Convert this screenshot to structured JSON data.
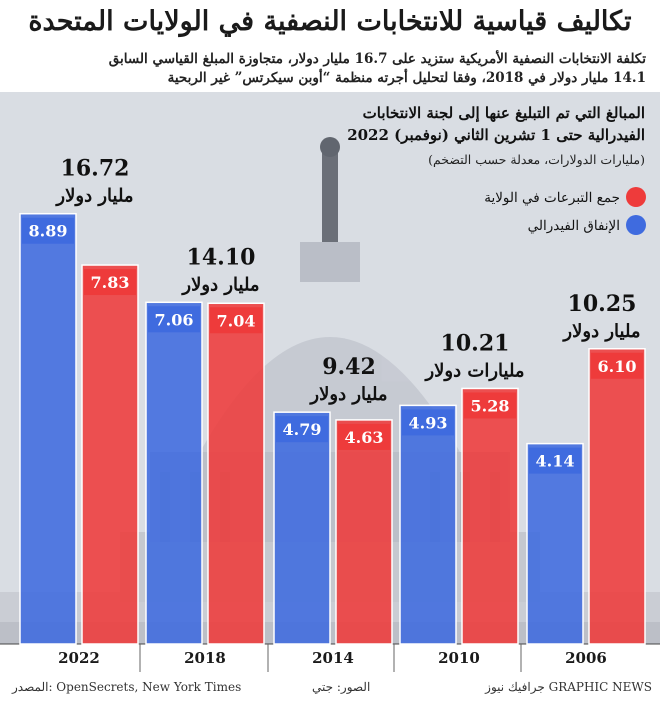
{
  "title": "تكاليف قياسية للانتخابات النصفية في الولايات المتحدة",
  "subtitle_lines": [
    "تكلفة الانتخابات النصفية الأمريكية ستزيد على 16.7 مليار دولار، متجاوزة المبلغ القياسي السابق",
    "14.1 مليار دولار في 2018، وفقا لتحليل أجرته منظمة “أوبن سيكرتس” غير الربحية"
  ],
  "footer": {
    "source": "المصدر: OpenSecrets, New York Times",
    "photos": "الصور: جتي",
    "credit": "GRAPHIC NEWS جرافيك نيوز"
  },
  "colors": {
    "red": "#ee3b3b",
    "blue": "#3f6bdf",
    "dark": "#111111"
  },
  "chart_data": {
    "type": "bar",
    "title": "المبالغ التي تم التبليغ عنها إلى لجنة الانتخابات الفيدرالية حتى 1 تشرين الثاني (نوفمبر) 2022",
    "title_lines": [
      "المبالغ التي تم التبليغ عنها إلى لجنة الانتخابات",
      "الفيدرالية حتى 1 تشرين الثاني (نوفمبر) 2022"
    ],
    "subtitle": "(مليارات الدولارات، معدلة حسب التضخم)",
    "categories": [
      "2022",
      "2018",
      "2014",
      "2010",
      "2006"
    ],
    "series": [
      {
        "name": "الإنفاق الفيدرالي",
        "color": "#3f6bdf",
        "values": [
          8.89,
          7.06,
          4.79,
          4.93,
          4.14
        ]
      },
      {
        "name": "جمع التبرعات في الولاية",
        "color": "#ee3b3b",
        "values": [
          7.83,
          7.04,
          4.63,
          5.28,
          6.1
        ]
      }
    ],
    "legend": [
      "جمع التبرعات في الولاية",
      "الإنفاق الفيدرالي"
    ],
    "legend_position": "top-right",
    "totals": [
      {
        "value": "16.72",
        "unit": "مليار دولار"
      },
      {
        "value": "14.10",
        "unit": "مليار دولار"
      },
      {
        "value": "9.42",
        "unit": "مليار دولار"
      },
      {
        "value": "10.21",
        "unit": "مليارات دولار"
      },
      {
        "value": "10.25",
        "unit": "مليار دولار"
      }
    ],
    "ylim": [
      0,
      10
    ]
  }
}
